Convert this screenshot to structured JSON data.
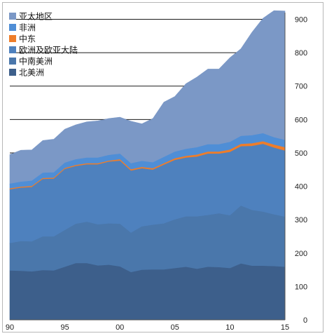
{
  "chart_data": {
    "type": "area",
    "stacked": true,
    "x": [
      1990,
      1991,
      1992,
      1993,
      1994,
      1995,
      1996,
      1997,
      1998,
      1999,
      2000,
      2001,
      2002,
      2003,
      2004,
      2005,
      2006,
      2007,
      2008,
      2009,
      2010,
      2011,
      2012,
      2013,
      2014,
      2015
    ],
    "x_tick_labels": [
      {
        "x": 1990,
        "label": "90"
      },
      {
        "x": 1995,
        "label": "95"
      },
      {
        "x": 2000,
        "label": "00"
      },
      {
        "x": 2005,
        "label": "05"
      },
      {
        "x": 2010,
        "label": "10"
      },
      {
        "x": 2015,
        "label": "15"
      }
    ],
    "y_ticks": [
      0,
      100,
      200,
      300,
      400,
      500,
      600,
      700,
      800,
      900
    ],
    "ylim": [
      0,
      920
    ],
    "y_axis_position": "right",
    "legend_position": "top-left",
    "series": [
      {
        "name": "北美洲",
        "color": "#3d5f8b",
        "values": [
          147,
          146,
          144,
          148,
          147,
          158,
          169,
          169,
          162,
          164,
          159,
          142,
          149,
          150,
          150,
          154,
          158,
          152,
          158,
          157,
          154,
          168,
          161,
          161,
          160,
          158
        ]
      },
      {
        "name": "中南美洲",
        "color": "#4a77ab",
        "values": [
          82,
          89,
          90,
          101,
          102,
          110,
          118,
          124,
          123,
          124,
          128,
          118,
          130,
          134,
          138,
          146,
          151,
          157,
          155,
          161,
          158,
          173,
          167,
          162,
          155,
          150
        ]
      },
      {
        "name": "欧洲及欧亚大陆",
        "color": "#4e81be",
        "values": [
          161,
          160,
          163,
          172,
          173,
          183,
          173,
          172,
          180,
          185,
          189,
          186,
          174,
          165,
          176,
          178,
          176,
          179,
          184,
          179,
          190,
          178,
          192,
          203,
          200,
          198
        ]
      },
      {
        "name": "中东",
        "color": "#ee7d2a",
        "values": [
          3,
          3,
          3,
          3,
          3,
          3,
          3,
          3,
          3,
          3,
          4,
          4,
          4,
          4,
          4,
          5,
          5,
          6,
          6,
          6,
          7,
          7,
          8,
          8,
          9,
          10
        ]
      },
      {
        "name": "非洲",
        "color": "#4f8ed6",
        "values": [
          14,
          15,
          16,
          16,
          16,
          16,
          17,
          17,
          17,
          17,
          17,
          18,
          18,
          18,
          19,
          20,
          21,
          22,
          22,
          22,
          23,
          24,
          24,
          24,
          22,
          22
        ]
      },
      {
        "name": "亚太地区",
        "color": "#7b98c6",
        "values": [
          88,
          95,
          93,
          97,
          100,
          101,
          104,
          108,
          111,
          110,
          110,
          127,
          112,
          132,
          165,
          166,
          196,
          211,
          226,
          226,
          253,
          262,
          309,
          345,
          380,
          387
        ]
      }
    ]
  },
  "legend_order": [
    "亚太地区",
    "非洲",
    "中东",
    "欧洲及欧亚大陆",
    "中南美洲",
    "北美洲"
  ]
}
